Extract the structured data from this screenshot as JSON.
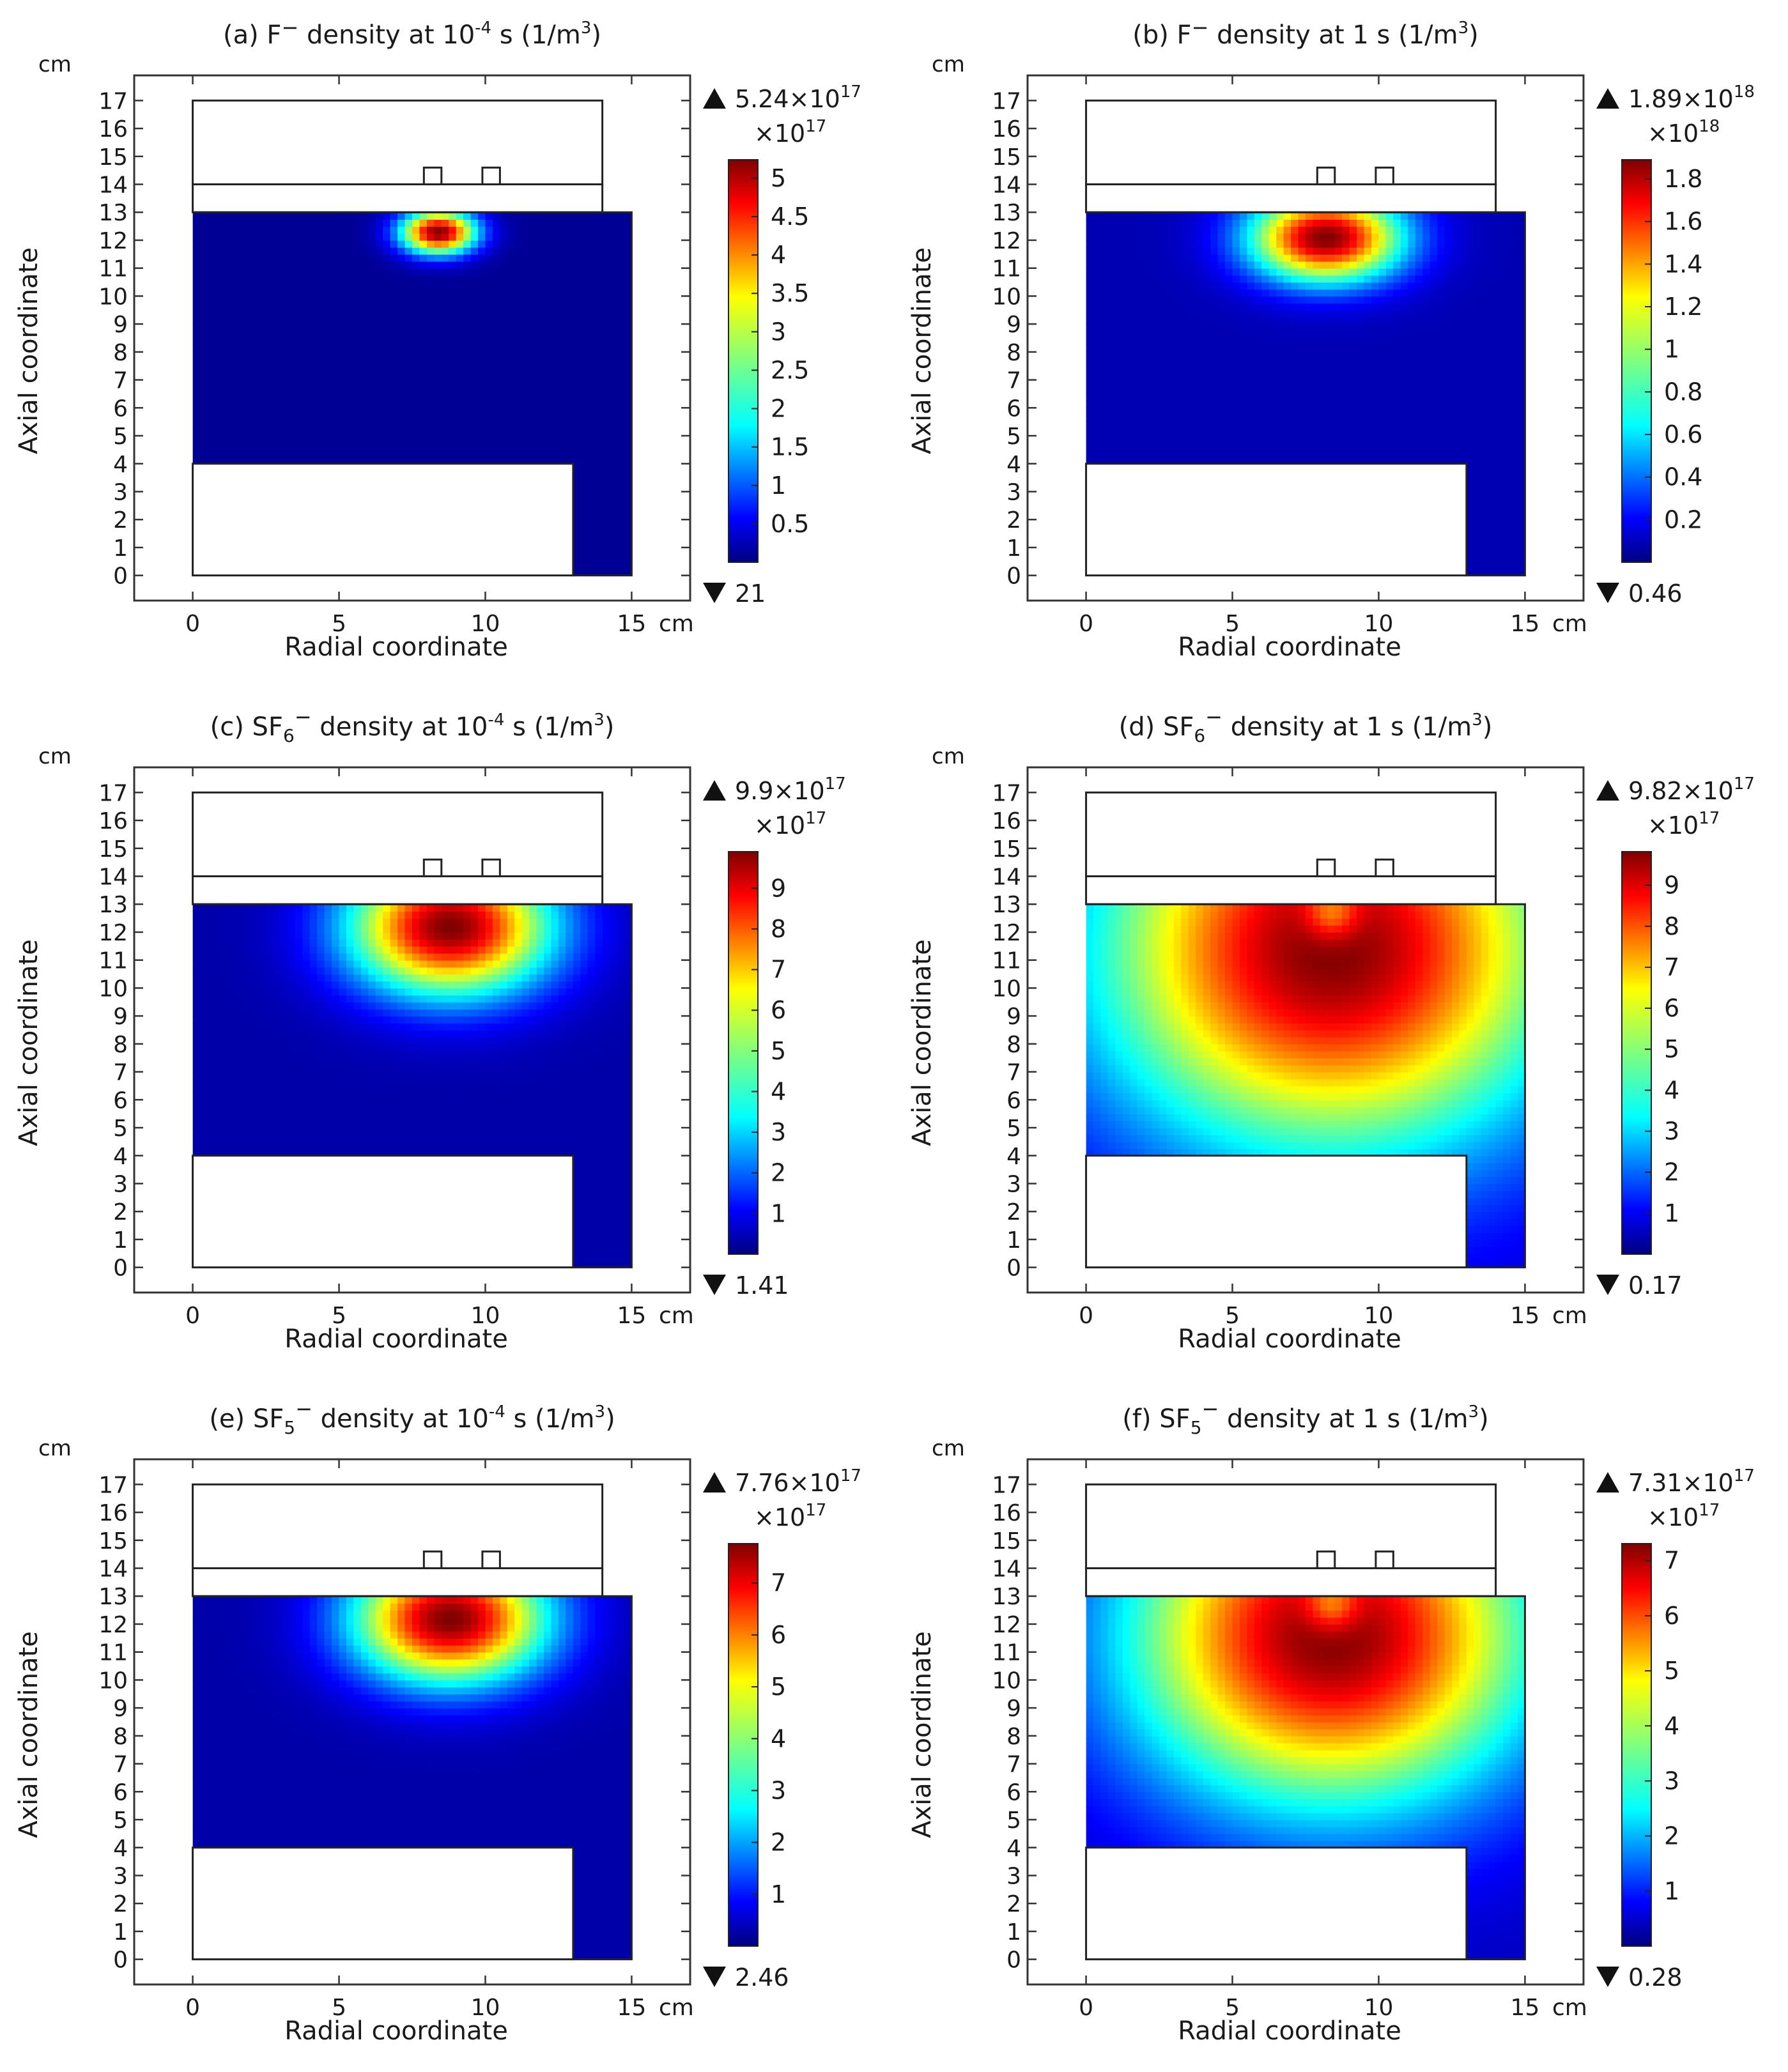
{
  "figure": {
    "panels_order": [
      "a",
      "b",
      "c",
      "d",
      "e",
      "f"
    ]
  },
  "chart_data": [
    {
      "id": "a",
      "type": "heatmap",
      "title_prefix": "(a) F",
      "title_sub": "",
      "title_sup": "−",
      "title_time_pre": " density at 10",
      "title_time_exp": "-4",
      "title_time_post": " s (1/m",
      "title_unit_exp": "3",
      "title_close": ")",
      "xlabel": "Radial coordinate",
      "ylabel": "Axial coordinate",
      "unit": "cm",
      "x_ticks": [
        "0",
        "5",
        "10",
        "15"
      ],
      "y_ticks": [
        "0",
        "1",
        "2",
        "3",
        "4",
        "5",
        "6",
        "7",
        "8",
        "9",
        "10",
        "11",
        "12",
        "13",
        "14",
        "15",
        "16",
        "17"
      ],
      "xlim": [
        -2,
        17
      ],
      "ylim": [
        -0.9,
        17.9
      ],
      "max_label": "5.24×10",
      "max_exp": "17",
      "scale_label": "×10",
      "scale_exp": "17",
      "min_label": "21",
      "colorbar_ticks": [
        "0.5",
        "1",
        "1.5",
        "2",
        "2.5",
        "3",
        "3.5",
        "4",
        "4.5",
        "5"
      ],
      "colorbar_tick_values": [
        0.5,
        1,
        1.5,
        2,
        2.5,
        3,
        3.5,
        4,
        4.5,
        5
      ],
      "colorbar_max": 5.24,
      "field": {
        "cx": 8.4,
        "cy": 12.3,
        "sigma_x": 0.9,
        "sigma_y": 0.55,
        "peak": 1.0,
        "background": 0.0
      }
    },
    {
      "id": "b",
      "type": "heatmap",
      "title_prefix": "(b) F",
      "title_sub": "",
      "title_sup": "−",
      "title_time_pre": " density at 1 s (1/m",
      "title_time_exp": "",
      "title_time_post": "",
      "title_unit_exp": "3",
      "title_close": ")",
      "xlabel": "Radial coordinate",
      "ylabel": "Axial coordinate",
      "unit": "cm",
      "x_ticks": [
        "0",
        "5",
        "10",
        "15"
      ],
      "y_ticks": [
        "0",
        "1",
        "2",
        "3",
        "4",
        "5",
        "6",
        "7",
        "8",
        "9",
        "10",
        "11",
        "12",
        "13",
        "14",
        "15",
        "16",
        "17"
      ],
      "xlim": [
        -2,
        17
      ],
      "ylim": [
        -0.9,
        17.9
      ],
      "max_label": "1.89×10",
      "max_exp": "18",
      "scale_label": "×10",
      "scale_exp": "18",
      "min_label": "0.46",
      "colorbar_ticks": [
        "0.2",
        "0.4",
        "0.6",
        "0.8",
        "1",
        "1.2",
        "1.4",
        "1.6",
        "1.8"
      ],
      "colorbar_tick_values": [
        0.2,
        0.4,
        0.6,
        0.8,
        1.0,
        1.2,
        1.4,
        1.6,
        1.8
      ],
      "colorbar_max": 1.89,
      "field": {
        "cx": 8.2,
        "cy": 12.1,
        "sigma_x": 1.8,
        "sigma_y": 1.1,
        "peak": 1.0,
        "background": 0.03
      }
    },
    {
      "id": "c",
      "type": "heatmap",
      "title_prefix": "(c) SF",
      "title_sub": "6",
      "title_sup": "−",
      "title_time_pre": " density at 10",
      "title_time_exp": "-4",
      "title_time_post": " s (1/m",
      "title_unit_exp": "3",
      "title_close": ")",
      "xlabel": "Radial coordinate",
      "ylabel": "Axial coordinate",
      "unit": "cm",
      "x_ticks": [
        "0",
        "5",
        "10",
        "15"
      ],
      "y_ticks": [
        "0",
        "1",
        "2",
        "3",
        "4",
        "5",
        "6",
        "7",
        "8",
        "9",
        "10",
        "11",
        "12",
        "13",
        "14",
        "15",
        "16",
        "17"
      ],
      "xlim": [
        -2,
        17
      ],
      "ylim": [
        -0.9,
        17.9
      ],
      "max_label": "9.9×10",
      "max_exp": "17",
      "scale_label": "×10",
      "scale_exp": "17",
      "min_label": "1.41",
      "colorbar_ticks": [
        "1",
        "2",
        "3",
        "4",
        "5",
        "6",
        "7",
        "8",
        "9"
      ],
      "colorbar_tick_values": [
        1,
        2,
        3,
        4,
        5,
        6,
        7,
        8,
        9
      ],
      "colorbar_max": 9.9,
      "field": {
        "cx": 8.8,
        "cy": 12.2,
        "sigma_x": 2.4,
        "sigma_y": 1.7,
        "peak": 1.0,
        "background": 0.02
      }
    },
    {
      "id": "d",
      "type": "heatmap",
      "title_prefix": "(d) SF",
      "title_sub": "6",
      "title_sup": "−",
      "title_time_pre": " density at 1 s (1/m",
      "title_time_exp": "",
      "title_time_post": "",
      "title_unit_exp": "3",
      "title_close": ")",
      "xlabel": "Radial coordinate",
      "ylabel": "Axial coordinate",
      "unit": "cm",
      "x_ticks": [
        "0",
        "5",
        "10",
        "15"
      ],
      "y_ticks": [
        "0",
        "1",
        "2",
        "3",
        "4",
        "5",
        "6",
        "7",
        "8",
        "9",
        "10",
        "11",
        "12",
        "13",
        "14",
        "15",
        "16",
        "17"
      ],
      "xlim": [
        -2,
        17
      ],
      "ylim": [
        -0.9,
        17.9
      ],
      "max_label": "9.82×10",
      "max_exp": "17",
      "scale_label": "×10",
      "scale_exp": "17",
      "min_label": "0.17",
      "colorbar_ticks": [
        "1",
        "2",
        "3",
        "4",
        "5",
        "6",
        "7",
        "8",
        "9"
      ],
      "colorbar_tick_values": [
        1,
        2,
        3,
        4,
        5,
        6,
        7,
        8,
        9
      ],
      "colorbar_max": 9.82,
      "field": {
        "cx": 8.4,
        "cy": 11.4,
        "sigma_x": 5.5,
        "sigma_y": 5.0,
        "peak": 1.0,
        "background": 0.05
      }
    },
    {
      "id": "e",
      "type": "heatmap",
      "title_prefix": "(e) SF",
      "title_sub": "5",
      "title_sup": "−",
      "title_time_pre": " density at 10",
      "title_time_exp": "-4",
      "title_time_post": " s (1/m",
      "title_unit_exp": "3",
      "title_close": ")",
      "xlabel": "Radial coordinate",
      "ylabel": "Axial coordinate",
      "unit": "cm",
      "x_ticks": [
        "0",
        "5",
        "10",
        "15"
      ],
      "y_ticks": [
        "0",
        "1",
        "2",
        "3",
        "4",
        "5",
        "6",
        "7",
        "8",
        "9",
        "10",
        "11",
        "12",
        "13",
        "14",
        "15",
        "16",
        "17"
      ],
      "xlim": [
        -2,
        17
      ],
      "ylim": [
        -0.9,
        17.9
      ],
      "max_label": "7.76×10",
      "max_exp": "17",
      "scale_label": "×10",
      "scale_exp": "17",
      "min_label": "2.46",
      "colorbar_ticks": [
        "1",
        "2",
        "3",
        "4",
        "5",
        "6",
        "7"
      ],
      "colorbar_tick_values": [
        1,
        2,
        3,
        4,
        5,
        6,
        7
      ],
      "colorbar_max": 7.76,
      "field": {
        "cx": 8.8,
        "cy": 12.2,
        "sigma_x": 2.3,
        "sigma_y": 1.6,
        "peak": 1.0,
        "background": 0.02
      }
    },
    {
      "id": "f",
      "type": "heatmap",
      "title_prefix": "(f) SF",
      "title_sub": "5",
      "title_sup": "−",
      "title_time_pre": " density at 1 s (1/m",
      "title_time_exp": "",
      "title_time_post": "",
      "title_unit_exp": "3",
      "title_close": ")",
      "xlabel": "Radial coordinate",
      "ylabel": "Axial coordinate",
      "unit": "cm",
      "x_ticks": [
        "0",
        "5",
        "10",
        "15"
      ],
      "y_ticks": [
        "0",
        "1",
        "2",
        "3",
        "4",
        "5",
        "6",
        "7",
        "8",
        "9",
        "10",
        "11",
        "12",
        "13",
        "14",
        "15",
        "16",
        "17"
      ],
      "xlim": [
        -2,
        17
      ],
      "ylim": [
        -0.9,
        17.9
      ],
      "max_label": "7.31×10",
      "max_exp": "17",
      "scale_label": "×10",
      "scale_exp": "17",
      "min_label": "0.28",
      "colorbar_ticks": [
        "1",
        "2",
        "3",
        "4",
        "5",
        "6",
        "7"
      ],
      "colorbar_tick_values": [
        1,
        2,
        3,
        4,
        5,
        6,
        7
      ],
      "colorbar_max": 7.31,
      "field": {
        "cx": 8.4,
        "cy": 11.6,
        "sigma_x": 4.8,
        "sigma_y": 4.2,
        "peak": 1.0,
        "background": 0.04
      }
    }
  ]
}
